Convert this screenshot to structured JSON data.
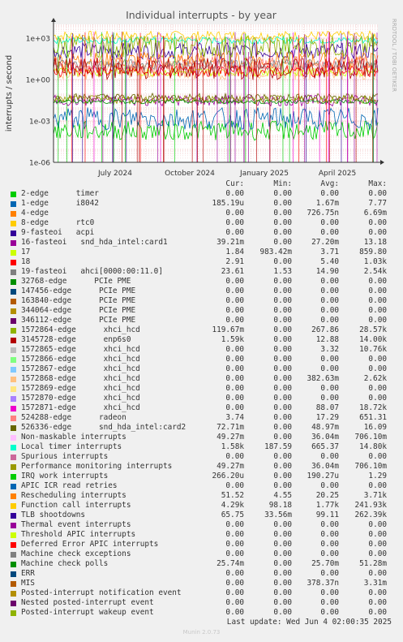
{
  "chart_data": {
    "type": "line",
    "title": "Individual interrupts - by year",
    "ylabel": "interrupts / second",
    "y_scale": "log",
    "ylim": [
      1e-06,
      10000
    ],
    "y_ticks": [
      "1e-06",
      "1e-03",
      "1e+00",
      "1e+03"
    ],
    "x_tick_labels": [
      "July 2024",
      "October 2024",
      "January 2025",
      "April 2025"
    ],
    "grid": true,
    "side_label": "RRDTOOL / TOBI OETIKER"
  },
  "legend": {
    "headers": {
      "cur": "Cur:",
      "min": "Min:",
      "avg": "Avg:",
      "max": "Max:"
    },
    "rows": [
      {
        "name": "2-edge      timer",
        "color": "#00cc00",
        "cur": "0.00",
        "min": "0.00",
        "avg": "0.00",
        "max": "0.00"
      },
      {
        "name": "1-edge      i8042",
        "color": "#0066b3",
        "cur": "185.19u",
        "min": "0.00",
        "avg": "1.67m",
        "max": "7.77"
      },
      {
        "name": "4-edge",
        "color": "#ff8000",
        "cur": "0.00",
        "min": "0.00",
        "avg": "726.75n",
        "max": "6.69m"
      },
      {
        "name": "8-edge      rtc0",
        "color": "#ffcc00",
        "cur": "0.00",
        "min": "0.00",
        "avg": "0.00",
        "max": "0.00"
      },
      {
        "name": "9-fasteoi   acpi",
        "color": "#330099",
        "cur": "0.00",
        "min": "0.00",
        "avg": "0.00",
        "max": "0.00"
      },
      {
        "name": "16-fasteoi   snd_hda_intel:card1",
        "color": "#990099",
        "cur": "39.21m",
        "min": "0.00",
        "avg": "27.20m",
        "max": "13.18"
      },
      {
        "name": "17",
        "color": "#ccff00",
        "cur": "1.84",
        "min": "983.42m",
        "avg": "3.71",
        "max": "859.80"
      },
      {
        "name": "18",
        "color": "#ff0000",
        "cur": "2.91",
        "min": "0.00",
        "avg": "5.40",
        "max": "1.03k"
      },
      {
        "name": "19-fasteoi   ahci[0000:00:11.0]",
        "color": "#808080",
        "cur": "23.61",
        "min": "1.53",
        "avg": "14.90",
        "max": "2.54k"
      },
      {
        "name": "32768-edge      PCIe PME",
        "color": "#008f00",
        "cur": "0.00",
        "min": "0.00",
        "avg": "0.00",
        "max": "0.00"
      },
      {
        "name": "147456-edge      PCIe PME",
        "color": "#00487d",
        "cur": "0.00",
        "min": "0.00",
        "avg": "0.00",
        "max": "0.00"
      },
      {
        "name": "163840-edge      PCIe PME",
        "color": "#b35a00",
        "cur": "0.00",
        "min": "0.00",
        "avg": "0.00",
        "max": "0.00"
      },
      {
        "name": "344064-edge      PCIe PME",
        "color": "#b38f00",
        "cur": "0.00",
        "min": "0.00",
        "avg": "0.00",
        "max": "0.00"
      },
      {
        "name": "346112-edge      PCIe PME",
        "color": "#6b006b",
        "cur": "0.00",
        "min": "0.00",
        "avg": "0.00",
        "max": "0.00"
      },
      {
        "name": "1572864-edge      xhci_hcd",
        "color": "#8fb300",
        "cur": "119.67m",
        "min": "0.00",
        "avg": "267.86",
        "max": "28.57k"
      },
      {
        "name": "3145728-edge      enp6s0",
        "color": "#b30000",
        "cur": "1.59k",
        "min": "0.00",
        "avg": "12.88",
        "max": "14.00k"
      },
      {
        "name": "1572865-edge      xhci_hcd",
        "color": "#bebebe",
        "cur": "0.00",
        "min": "0.00",
        "avg": "3.32",
        "max": "10.76k"
      },
      {
        "name": "1572866-edge      xhci_hcd",
        "color": "#80ff80",
        "cur": "0.00",
        "min": "0.00",
        "avg": "0.00",
        "max": "0.00"
      },
      {
        "name": "1572867-edge      xhci_hcd",
        "color": "#80c9ff",
        "cur": "0.00",
        "min": "0.00",
        "avg": "0.00",
        "max": "0.00"
      },
      {
        "name": "1572868-edge      xhci_hcd",
        "color": "#ffc080",
        "cur": "0.00",
        "min": "0.00",
        "avg": "382.63m",
        "max": "2.62k"
      },
      {
        "name": "1572869-edge      xhci_hcd",
        "color": "#ffe680",
        "cur": "0.00",
        "min": "0.00",
        "avg": "0.00",
        "max": "0.00"
      },
      {
        "name": "1572870-edge      xhci_hcd",
        "color": "#aa80ff",
        "cur": "0.00",
        "min": "0.00",
        "avg": "0.00",
        "max": "0.00"
      },
      {
        "name": "1572871-edge      xhci_hcd",
        "color": "#ee00cc",
        "cur": "0.00",
        "min": "0.00",
        "avg": "88.07",
        "max": "18.72k"
      },
      {
        "name": "524288-edge      radeon",
        "color": "#ff8080",
        "cur": "3.74",
        "min": "0.00",
        "avg": "17.29",
        "max": "651.31"
      },
      {
        "name": "526336-edge      snd_hda_intel:card2",
        "color": "#666600",
        "cur": "72.71m",
        "min": "0.00",
        "avg": "48.97m",
        "max": "16.09"
      },
      {
        "name": "Non-maskable interrupts",
        "color": "#ffbfff",
        "cur": "49.27m",
        "min": "0.00",
        "avg": "36.04m",
        "max": "706.10m"
      },
      {
        "name": "Local timer interrupts",
        "color": "#00ffcc",
        "cur": "1.58k",
        "min": "187.59",
        "avg": "665.37",
        "max": "14.80k"
      },
      {
        "name": "Spurious interrupts",
        "color": "#cc6699",
        "cur": "0.00",
        "min": "0.00",
        "avg": "0.00",
        "max": "0.00"
      },
      {
        "name": "Performance monitoring interrupts",
        "color": "#999900",
        "cur": "49.27m",
        "min": "0.00",
        "avg": "36.04m",
        "max": "706.10m"
      },
      {
        "name": "IRQ work interrupts",
        "color": "#00cc00",
        "cur": "266.20u",
        "min": "0.00",
        "avg": "190.27u",
        "max": "1.29"
      },
      {
        "name": "APIC ICR read retries",
        "color": "#0066b3",
        "cur": "0.00",
        "min": "0.00",
        "avg": "0.00",
        "max": "0.00"
      },
      {
        "name": "Rescheduling interrupts",
        "color": "#ff8000",
        "cur": "51.52",
        "min": "4.55",
        "avg": "20.25",
        "max": "3.71k"
      },
      {
        "name": "Function call interrupts",
        "color": "#ffcc00",
        "cur": "4.29k",
        "min": "98.18",
        "avg": "1.77k",
        "max": "241.93k"
      },
      {
        "name": "TLB shootdowns",
        "color": "#330099",
        "cur": "65.75",
        "min": "33.56m",
        "avg": "99.11",
        "max": "262.39k"
      },
      {
        "name": "Thermal event interrupts",
        "color": "#990099",
        "cur": "0.00",
        "min": "0.00",
        "avg": "0.00",
        "max": "0.00"
      },
      {
        "name": "Threshold APIC interrupts",
        "color": "#ccff00",
        "cur": "0.00",
        "min": "0.00",
        "avg": "0.00",
        "max": "0.00"
      },
      {
        "name": "Deferred Error APIC interrupts",
        "color": "#ff0000",
        "cur": "0.00",
        "min": "0.00",
        "avg": "0.00",
        "max": "0.00"
      },
      {
        "name": "Machine check exceptions",
        "color": "#808080",
        "cur": "0.00",
        "min": "0.00",
        "avg": "0.00",
        "max": "0.00"
      },
      {
        "name": "Machine check polls",
        "color": "#008f00",
        "cur": "25.74m",
        "min": "0.00",
        "avg": "25.70m",
        "max": "51.28m"
      },
      {
        "name": "ERR",
        "color": "#00487d",
        "cur": "0.00",
        "min": "0.00",
        "avg": "0.00",
        "max": "0.00"
      },
      {
        "name": "MIS",
        "color": "#b35a00",
        "cur": "0.00",
        "min": "0.00",
        "avg": "378.37n",
        "max": "3.31m"
      },
      {
        "name": "Posted-interrupt notification event",
        "color": "#b38f00",
        "cur": "0.00",
        "min": "0.00",
        "avg": "0.00",
        "max": "0.00"
      },
      {
        "name": "Nested posted-interrupt event",
        "color": "#6b006b",
        "cur": "0.00",
        "min": "0.00",
        "avg": "0.00",
        "max": "0.00"
      },
      {
        "name": "Posted-interrupt wakeup event",
        "color": "#8fb300",
        "cur": "0.00",
        "min": "0.00",
        "avg": "0.00",
        "max": "0.00"
      }
    ]
  },
  "footer": {
    "last_update": "Last update: Wed Jun  4 02:00:35 2025",
    "version": "Munin 2.0.73"
  }
}
